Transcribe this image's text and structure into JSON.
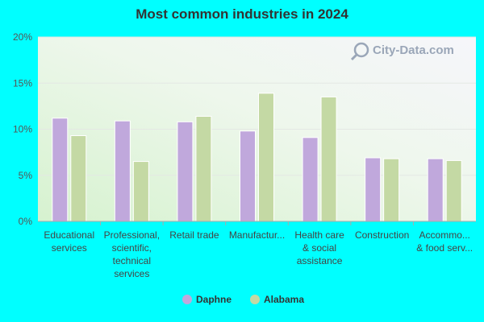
{
  "chart_data": {
    "type": "bar",
    "title": "Most common industries in 2024",
    "categories": [
      [
        "Educational",
        "services"
      ],
      [
        "Professional,",
        "scientific,",
        "technical",
        "services"
      ],
      [
        "Retail trade"
      ],
      [
        "Manufactur..."
      ],
      [
        "Health care",
        "& social",
        "assistance"
      ],
      [
        "Construction"
      ],
      [
        "Accommo...",
        "& food serv..."
      ]
    ],
    "series": [
      {
        "name": "Daphne",
        "color": "#c0a8dc",
        "values": [
          11.2,
          10.9,
          10.8,
          9.8,
          9.1,
          6.9,
          6.8
        ]
      },
      {
        "name": "Alabama",
        "color": "#c4d9a4",
        "values": [
          9.3,
          6.5,
          11.4,
          13.9,
          13.5,
          6.8,
          6.6
        ]
      }
    ],
    "ylim": [
      0,
      20
    ],
    "yticks": [
      "0%",
      "5%",
      "10%",
      "15%",
      "20%"
    ],
    "xlabel": "",
    "ylabel": "",
    "legend_position": "bottom"
  },
  "watermark": "City-Data.com"
}
